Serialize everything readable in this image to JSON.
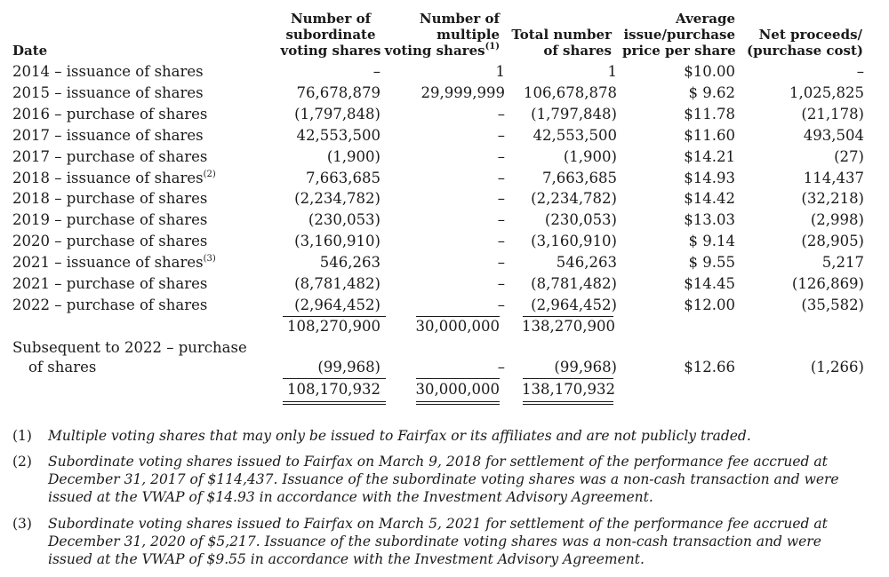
{
  "headers": {
    "date": "Date",
    "sub_voting": [
      "Number of",
      "subordinate",
      "voting shares"
    ],
    "multi_voting": [
      "Number of",
      "multiple",
      "voting shares"
    ],
    "multi_voting_sup": "(1)",
    "total": [
      "Total number",
      "of shares"
    ],
    "avg_price": [
      "Average",
      "issue/purchase",
      "price per share"
    ],
    "net_proceeds": [
      "Net proceeds/",
      "(purchase cost)"
    ]
  },
  "rows": [
    {
      "date": "2014 – issuance of shares",
      "sup": "",
      "sub": "–",
      "multi": "1",
      "total": "1",
      "price": "$10.00",
      "net": "–"
    },
    {
      "date": "2015 – issuance of shares",
      "sup": "",
      "sub": "76,678,879",
      "multi": "29,999,999",
      "total": "106,678,878",
      "price": "$ 9.62",
      "net": "1,025,825"
    },
    {
      "date": "2016 – purchase of shares",
      "sup": "",
      "sub": "(1,797,848)",
      "multi": "–",
      "total": "(1,797,848)",
      "price": "$11.78",
      "net": "(21,178)"
    },
    {
      "date": "2017 – issuance of shares",
      "sup": "",
      "sub": "42,553,500",
      "multi": "–",
      "total": "42,553,500",
      "price": "$11.60",
      "net": "493,504"
    },
    {
      "date": "2017 – purchase of shares",
      "sup": "",
      "sub": "(1,900)",
      "multi": "–",
      "total": "(1,900)",
      "price": "$14.21",
      "net": "(27)"
    },
    {
      "date": "2018 – issuance of shares",
      "sup": "(2)",
      "sub": "7,663,685",
      "multi": "–",
      "total": "7,663,685",
      "price": "$14.93",
      "net": "114,437"
    },
    {
      "date": "2018 – purchase of shares",
      "sup": "",
      "sub": "(2,234,782)",
      "multi": "–",
      "total": "(2,234,782)",
      "price": "$14.42",
      "net": "(32,218)"
    },
    {
      "date": "2019 – purchase of shares",
      "sup": "",
      "sub": "(230,053)",
      "multi": "–",
      "total": "(230,053)",
      "price": "$13.03",
      "net": "(2,998)"
    },
    {
      "date": "2020 – purchase of shares",
      "sup": "",
      "sub": "(3,160,910)",
      "multi": "–",
      "total": "(3,160,910)",
      "price": "$ 9.14",
      "net": "(28,905)"
    },
    {
      "date": "2021 – issuance of shares",
      "sup": "(3)",
      "sub": "546,263",
      "multi": "–",
      "total": "546,263",
      "price": "$ 9.55",
      "net": "5,217"
    },
    {
      "date": "2021 – purchase of shares",
      "sup": "",
      "sub": "(8,781,482)",
      "multi": "–",
      "total": "(8,781,482)",
      "price": "$14.45",
      "net": "(126,869)"
    },
    {
      "date": "2022 – purchase of shares",
      "sup": "",
      "sub": "(2,964,452)",
      "multi": "–",
      "total": "(2,964,452)",
      "price": "$12.00",
      "net": "(35,582)"
    }
  ],
  "subtotal": {
    "sub": "108,270,900",
    "multi": "30,000,000",
    "total": "138,270,900"
  },
  "subsequent": {
    "date_line1": "Subsequent to 2022 – purchase",
    "date_line2": "of shares",
    "sub": "(99,968)",
    "multi": "–",
    "total": "(99,968)",
    "price": "$12.66",
    "net": "(1,266)"
  },
  "final_total": {
    "sub": "108,170,932",
    "multi": "30,000,000",
    "total": "138,170,932"
  },
  "footnotes": [
    {
      "num": "(1)",
      "text": "Multiple voting shares that may only be issued to Fairfax or its affiliates and are not publicly traded."
    },
    {
      "num": "(2)",
      "text": "Subordinate voting shares issued to Fairfax on March 9, 2018 for settlement of the performance fee accrued at December 31, 2017 of $114,437. Issuance of the subordinate voting shares was a non-cash transaction and were issued at the VWAP of $14.93 in accordance with the Investment Advisory Agreement."
    },
    {
      "num": "(3)",
      "text": "Subordinate voting shares issued to Fairfax on March 5, 2021 for settlement of the performance fee accrued at December 31, 2020 of $5,217. Issuance of the subordinate voting shares was a non-cash transaction and were issued at the VWAP of $9.55 in accordance with the Investment Advisory Agreement."
    }
  ]
}
